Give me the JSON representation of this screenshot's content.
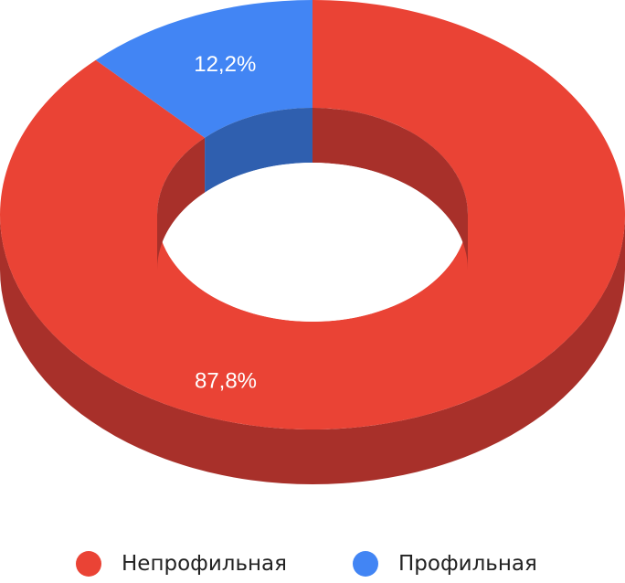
{
  "chart_data": {
    "type": "pie",
    "variant": "3d-donut",
    "title": "",
    "categories": [
      "Непрофильная",
      "Профильная"
    ],
    "values": [
      87.8,
      12.2
    ],
    "value_labels": [
      "87,8%",
      "12,2%"
    ],
    "colors": [
      "#EA4335",
      "#4285F4"
    ],
    "side_colors": [
      "#A8302A",
      "#2F5FAF"
    ],
    "legend_position": "bottom"
  }
}
